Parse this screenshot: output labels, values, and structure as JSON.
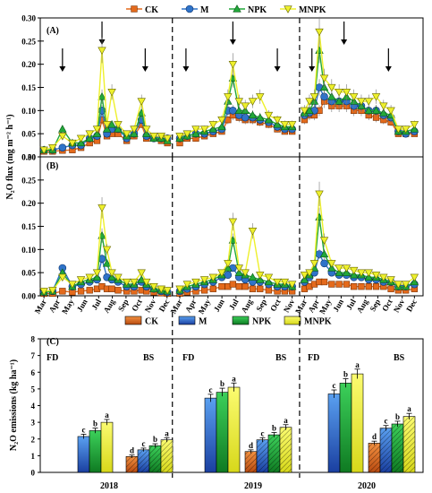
{
  "colors": {
    "CK": "#e46a1c",
    "M": "#2f73c9",
    "NPK": "#22a83a",
    "MNPK": "#eef02c",
    "axis": "#000000"
  },
  "legend_top": [
    "CK",
    "M",
    "NPK",
    "MNPK"
  ],
  "legend_bottom": [
    "CK",
    "M",
    "NPK",
    "MNPK"
  ],
  "panel_labels": {
    "a": "(A)",
    "b": "(B)",
    "c": "(C)"
  },
  "ylabel_ab": "N₂O flux (mg m⁻² h⁻¹)",
  "ylabel_c": "N₂O emissions (kg ha⁻¹)",
  "month_labels": [
    "Mar",
    "Apr",
    "May",
    "Jun",
    "Jul",
    "Aug",
    "Sep",
    "Oct",
    "Nov",
    "Dec",
    "Mar",
    "Apr",
    "May",
    "Jun",
    "Jul",
    "Aug",
    "Sep",
    "Oct",
    "Nov",
    "Mar",
    "Apr",
    "May",
    "Jun",
    "Jul",
    "Aug",
    "Sep",
    "Oct",
    "Nov",
    "Dec"
  ],
  "year_labels": [
    "2018",
    "2019",
    "2020"
  ],
  "season_labels": {
    "fd": "FD",
    "bs": "BS"
  },
  "chart_data": [
    {
      "panel": "(A)",
      "type": "line",
      "ylabel": "N₂O flux (mg m⁻² h⁻¹)",
      "ylim": [
        0,
        0.3
      ],
      "yticks": [
        0.0,
        0.05,
        0.1,
        0.15,
        0.2,
        0.25,
        0.3
      ],
      "x_note": "x = continuous position in months across 2018 (Mar–Dec), 2019 (Mar–Nov), 2020 (Mar–Dec)",
      "xlim": [
        0,
        31
      ],
      "year_dividers": [
        10.7,
        21.0
      ],
      "arrows_x": [
        1.8,
        5.0,
        8.5,
        11.8,
        15.6,
        19.2,
        22.0,
        24.6,
        28.2
      ],
      "series": [
        {
          "name": "CK",
          "x": [
            0.3,
            1.0,
            1.8,
            2.6,
            3.3,
            4.0,
            4.6,
            5.0,
            5.4,
            5.8,
            6.3,
            7.0,
            7.6,
            8.2,
            8.6,
            9.2,
            9.8,
            10.3,
            11.3,
            11.9,
            12.6,
            13.3,
            14.0,
            14.7,
            15.2,
            15.6,
            16.1,
            16.6,
            17.2,
            17.8,
            18.5,
            19.2,
            19.8,
            20.4,
            21.4,
            21.8,
            22.2,
            22.6,
            23.0,
            23.6,
            24.2,
            24.8,
            25.4,
            26.0,
            26.6,
            27.2,
            27.8,
            28.4,
            29.0,
            29.6,
            30.3
          ],
          "y": [
            0.012,
            0.012,
            0.014,
            0.015,
            0.02,
            0.03,
            0.035,
            0.08,
            0.045,
            0.05,
            0.05,
            0.035,
            0.045,
            0.07,
            0.04,
            0.04,
            0.035,
            0.03,
            0.03,
            0.04,
            0.04,
            0.045,
            0.05,
            0.055,
            0.08,
            0.09,
            0.085,
            0.08,
            0.08,
            0.075,
            0.07,
            0.06,
            0.055,
            0.055,
            0.08,
            0.09,
            0.09,
            0.1,
            0.12,
            0.11,
            0.11,
            0.11,
            0.1,
            0.1,
            0.09,
            0.085,
            0.08,
            0.075,
            0.05,
            0.05,
            0.05
          ]
        },
        {
          "name": "M",
          "x": [
            0.3,
            1.0,
            1.8,
            2.6,
            3.3,
            4.0,
            4.6,
            5.0,
            5.4,
            5.8,
            6.3,
            7.0,
            7.6,
            8.2,
            8.6,
            9.2,
            9.8,
            10.3,
            11.3,
            11.9,
            12.6,
            13.3,
            14.0,
            14.7,
            15.2,
            15.6,
            16.1,
            16.6,
            17.2,
            17.8,
            18.5,
            19.2,
            19.8,
            20.4,
            21.4,
            21.8,
            22.2,
            22.6,
            23.0,
            23.6,
            24.2,
            24.8,
            25.4,
            26.0,
            26.6,
            27.2,
            27.8,
            28.4,
            29.0,
            29.6,
            30.3
          ],
          "y": [
            0.015,
            0.015,
            0.02,
            0.025,
            0.025,
            0.04,
            0.045,
            0.1,
            0.05,
            0.06,
            0.06,
            0.04,
            0.05,
            0.08,
            0.045,
            0.04,
            0.04,
            0.04,
            0.04,
            0.045,
            0.05,
            0.05,
            0.055,
            0.06,
            0.1,
            0.1,
            0.09,
            0.085,
            0.085,
            0.08,
            0.075,
            0.065,
            0.06,
            0.06,
            0.09,
            0.095,
            0.1,
            0.15,
            0.13,
            0.12,
            0.12,
            0.12,
            0.11,
            0.11,
            0.1,
            0.1,
            0.09,
            0.085,
            0.055,
            0.05,
            0.055
          ]
        },
        {
          "name": "NPK",
          "x": [
            0.3,
            1.0,
            1.8,
            2.6,
            3.3,
            4.0,
            4.6,
            5.0,
            5.4,
            5.8,
            6.3,
            7.0,
            7.6,
            8.2,
            8.6,
            9.2,
            9.8,
            10.3,
            11.3,
            11.9,
            12.6,
            13.3,
            14.0,
            14.7,
            15.2,
            15.6,
            16.1,
            16.6,
            17.2,
            17.8,
            18.5,
            19.2,
            19.8,
            20.4,
            21.4,
            21.8,
            22.2,
            22.6,
            23.0,
            23.6,
            24.2,
            24.8,
            25.4,
            26.0,
            26.6,
            27.2,
            27.8,
            28.4,
            29.0,
            29.6,
            30.3
          ],
          "y": [
            0.015,
            0.015,
            0.06,
            0.03,
            0.03,
            0.04,
            0.05,
            0.13,
            0.06,
            0.07,
            0.06,
            0.045,
            0.05,
            0.095,
            0.05,
            0.04,
            0.04,
            0.035,
            0.04,
            0.045,
            0.05,
            0.055,
            0.06,
            0.065,
            0.12,
            0.17,
            0.1,
            0.1,
            0.09,
            0.085,
            0.08,
            0.07,
            0.065,
            0.065,
            0.095,
            0.1,
            0.12,
            0.23,
            0.15,
            0.13,
            0.12,
            0.13,
            0.12,
            0.11,
            0.1,
            0.1,
            0.095,
            0.09,
            0.055,
            0.055,
            0.06
          ]
        },
        {
          "name": "MNPK",
          "x": [
            0.3,
            1.0,
            1.8,
            2.6,
            3.3,
            4.0,
            4.6,
            5.0,
            5.4,
            5.8,
            6.3,
            7.0,
            7.6,
            8.2,
            8.6,
            9.2,
            9.8,
            10.3,
            11.3,
            11.9,
            12.6,
            13.3,
            14.0,
            14.7,
            15.2,
            15.6,
            16.1,
            16.6,
            17.2,
            17.8,
            18.5,
            19.2,
            19.8,
            20.4,
            21.4,
            21.8,
            22.2,
            22.6,
            23.0,
            23.6,
            24.2,
            24.8,
            25.4,
            26.0,
            26.6,
            27.2,
            27.8,
            28.4,
            29.0,
            29.6,
            30.3
          ],
          "y": [
            0.015,
            0.02,
            0.045,
            0.03,
            0.04,
            0.05,
            0.06,
            0.23,
            0.07,
            0.14,
            0.07,
            0.05,
            0.06,
            0.12,
            0.06,
            0.045,
            0.045,
            0.04,
            0.045,
            0.05,
            0.06,
            0.06,
            0.07,
            0.08,
            0.13,
            0.2,
            0.12,
            0.11,
            0.12,
            0.13,
            0.09,
            0.08,
            0.07,
            0.07,
            0.1,
            0.12,
            0.13,
            0.27,
            0.17,
            0.15,
            0.14,
            0.14,
            0.13,
            0.12,
            0.12,
            0.13,
            0.11,
            0.1,
            0.06,
            0.06,
            0.07
          ]
        }
      ]
    },
    {
      "panel": "(B)",
      "type": "line",
      "ylabel": "N₂O flux (mg m⁻² h⁻¹)",
      "ylim": [
        0,
        0.3
      ],
      "yticks": [
        0.0,
        0.05,
        0.1,
        0.15,
        0.2,
        0.25,
        0.3
      ],
      "xlim": [
        0,
        31
      ],
      "year_dividers": [
        10.7,
        21.0
      ],
      "series": [
        {
          "name": "CK",
          "x": [
            0.3,
            1.0,
            1.8,
            2.6,
            3.3,
            4.0,
            4.6,
            5.0,
            5.4,
            5.8,
            6.3,
            7.0,
            7.6,
            8.2,
            8.6,
            9.2,
            9.8,
            10.3,
            11.3,
            11.9,
            12.6,
            13.3,
            14.0,
            14.7,
            15.2,
            15.6,
            16.1,
            16.6,
            17.2,
            17.8,
            18.5,
            19.2,
            19.8,
            20.4,
            21.4,
            21.8,
            22.2,
            22.6,
            23.0,
            23.6,
            24.2,
            24.8,
            25.4,
            26.0,
            26.6,
            27.2,
            27.8,
            28.4,
            29.0,
            29.6,
            30.3
          ],
          "y": [
            0.005,
            0.005,
            0.01,
            0.008,
            0.01,
            0.012,
            0.015,
            0.02,
            0.015,
            0.015,
            0.012,
            0.01,
            0.01,
            0.012,
            0.01,
            0.008,
            0.006,
            0.005,
            0.005,
            0.008,
            0.01,
            0.012,
            0.015,
            0.02,
            0.02,
            0.025,
            0.02,
            0.02,
            0.015,
            0.015,
            0.012,
            0.01,
            0.01,
            0.01,
            0.015,
            0.02,
            0.025,
            0.03,
            0.03,
            0.025,
            0.025,
            0.025,
            0.02,
            0.02,
            0.02,
            0.02,
            0.02,
            0.015,
            0.012,
            0.012,
            0.015
          ]
        },
        {
          "name": "M",
          "x": [
            0.3,
            1.0,
            1.8,
            2.6,
            3.3,
            4.0,
            4.6,
            5.0,
            5.4,
            5.8,
            6.3,
            7.0,
            7.6,
            8.2,
            8.6,
            9.2,
            9.8,
            10.3,
            11.3,
            11.9,
            12.6,
            13.3,
            14.0,
            14.7,
            15.2,
            15.6,
            16.1,
            16.6,
            17.2,
            17.8,
            18.5,
            19.2,
            19.8,
            20.4,
            21.4,
            21.8,
            22.2,
            22.6,
            23.0,
            23.6,
            24.2,
            24.8,
            25.4,
            26.0,
            26.6,
            27.2,
            27.8,
            28.4,
            29.0,
            29.6,
            30.3
          ],
          "y": [
            0.008,
            0.01,
            0.06,
            0.02,
            0.025,
            0.03,
            0.035,
            0.08,
            0.04,
            0.035,
            0.03,
            0.02,
            0.02,
            0.03,
            0.02,
            0.015,
            0.01,
            0.008,
            0.01,
            0.015,
            0.02,
            0.025,
            0.03,
            0.04,
            0.045,
            0.06,
            0.04,
            0.035,
            0.03,
            0.03,
            0.025,
            0.02,
            0.02,
            0.02,
            0.03,
            0.04,
            0.05,
            0.09,
            0.07,
            0.05,
            0.045,
            0.045,
            0.04,
            0.04,
            0.035,
            0.035,
            0.03,
            0.03,
            0.02,
            0.02,
            0.025
          ]
        },
        {
          "name": "NPK",
          "x": [
            0.3,
            1.0,
            1.8,
            2.6,
            3.3,
            4.0,
            4.6,
            5.0,
            5.4,
            5.8,
            6.3,
            7.0,
            7.6,
            8.2,
            8.6,
            9.2,
            9.8,
            10.3,
            11.3,
            11.9,
            12.6,
            13.3,
            14.0,
            14.7,
            15.2,
            15.6,
            16.1,
            16.6,
            17.2,
            17.8,
            18.5,
            19.2,
            19.8,
            20.4,
            21.4,
            21.8,
            22.2,
            22.6,
            23.0,
            23.6,
            24.2,
            24.8,
            25.4,
            26.0,
            26.6,
            27.2,
            27.8,
            28.4,
            29.0,
            29.6,
            30.3
          ],
          "y": [
            0.008,
            0.01,
            0.05,
            0.02,
            0.03,
            0.035,
            0.04,
            0.13,
            0.07,
            0.04,
            0.035,
            0.025,
            0.025,
            0.035,
            0.025,
            0.015,
            0.012,
            0.01,
            0.012,
            0.02,
            0.025,
            0.03,
            0.035,
            0.045,
            0.06,
            0.12,
            0.05,
            0.045,
            0.04,
            0.035,
            0.03,
            0.025,
            0.025,
            0.02,
            0.035,
            0.045,
            0.06,
            0.17,
            0.09,
            0.06,
            0.05,
            0.05,
            0.045,
            0.045,
            0.04,
            0.04,
            0.035,
            0.03,
            0.02,
            0.02,
            0.03
          ]
        },
        {
          "name": "MNPK",
          "x": [
            0.3,
            1.0,
            1.8,
            2.6,
            3.3,
            4.0,
            4.6,
            5.0,
            5.4,
            5.8,
            6.3,
            7.0,
            7.6,
            8.2,
            8.6,
            9.2,
            9.8,
            10.3,
            11.3,
            11.9,
            12.6,
            13.3,
            14.0,
            14.7,
            15.2,
            15.6,
            16.1,
            16.6,
            17.2,
            17.8,
            18.5,
            19.2,
            19.8,
            20.4,
            21.4,
            21.8,
            22.2,
            22.6,
            23.0,
            23.6,
            24.2,
            24.8,
            25.4,
            26.0,
            26.6,
            27.2,
            27.8,
            28.4,
            29.0,
            29.6,
            30.3
          ],
          "y": [
            0.01,
            0.012,
            0.04,
            0.025,
            0.035,
            0.04,
            0.05,
            0.19,
            0.1,
            0.05,
            0.04,
            0.03,
            0.03,
            0.05,
            0.03,
            0.02,
            0.015,
            0.012,
            0.015,
            0.025,
            0.03,
            0.035,
            0.04,
            0.05,
            0.07,
            0.16,
            0.06,
            0.05,
            0.14,
            0.045,
            0.04,
            0.03,
            0.03,
            0.025,
            0.045,
            0.05,
            0.07,
            0.22,
            0.12,
            0.07,
            0.06,
            0.06,
            0.055,
            0.05,
            0.05,
            0.045,
            0.04,
            0.035,
            0.025,
            0.025,
            0.04
          ]
        }
      ]
    },
    {
      "panel": "(C)",
      "type": "bar",
      "ylabel": "N₂O emissions (kg ha⁻¹)",
      "ylim": [
        0,
        8
      ],
      "yticks": [
        0,
        1,
        2,
        3,
        4,
        5,
        6,
        7,
        8
      ],
      "groups": [
        {
          "year": "2018",
          "season": "FD",
          "values": [
            null,
            2.15,
            2.5,
            3.0
          ],
          "letters": [
            "",
            "c",
            "b",
            "a"
          ]
        },
        {
          "year": "2018",
          "season": "BS",
          "values": [
            0.95,
            1.35,
            1.6,
            1.95
          ],
          "letters": [
            "d",
            "c",
            "b",
            "a"
          ]
        },
        {
          "year": "2019",
          "season": "FD",
          "values": [
            null,
            4.45,
            4.8,
            5.1
          ],
          "letters": [
            "",
            "c",
            "b",
            "a"
          ]
        },
        {
          "year": "2019",
          "season": "BS",
          "values": [
            1.25,
            1.95,
            2.25,
            2.7
          ],
          "letters": [
            "d",
            "c",
            "b",
            "a"
          ]
        },
        {
          "year": "2020",
          "season": "FD",
          "values": [
            null,
            4.7,
            5.35,
            5.9
          ],
          "letters": [
            "",
            "c",
            "b",
            "a"
          ]
        },
        {
          "year": "2020",
          "season": "BS",
          "values": [
            1.75,
            2.65,
            2.9,
            3.35
          ],
          "letters": [
            "d",
            "c",
            "b",
            "a"
          ]
        }
      ],
      "series_names": [
        "CK",
        "M",
        "NPK",
        "MNPK"
      ]
    }
  ]
}
